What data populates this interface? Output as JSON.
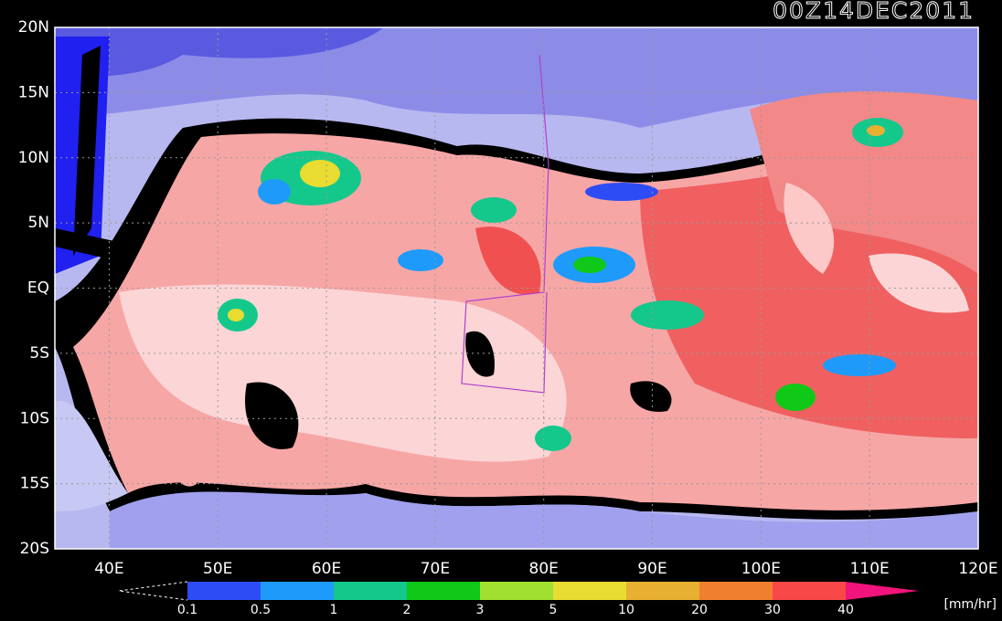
{
  "title": "00Z14DEC2011",
  "lat_labels": [
    "20N",
    "15N",
    "10N",
    "5N",
    "EQ",
    "5S",
    "10S",
    "15S",
    "20S"
  ],
  "lon_labels": [
    "40E",
    "50E",
    "60E",
    "70E",
    "80E",
    "90E",
    "100E",
    "110E",
    "120E"
  ],
  "colorbar": {
    "labels": [
      "0.1",
      "0.5",
      "1",
      "2",
      "3",
      "5",
      "10",
      "20",
      "30",
      "40"
    ],
    "colors": [
      "#2e4cf6",
      "#1e9bfa",
      "#14c88c",
      "#10c818",
      "#a0e030",
      "#e8dc30",
      "#e8b030",
      "#f08030",
      "#f84848"
    ],
    "over_color": "#f0147c",
    "unit": "[mm/hr]"
  }
}
